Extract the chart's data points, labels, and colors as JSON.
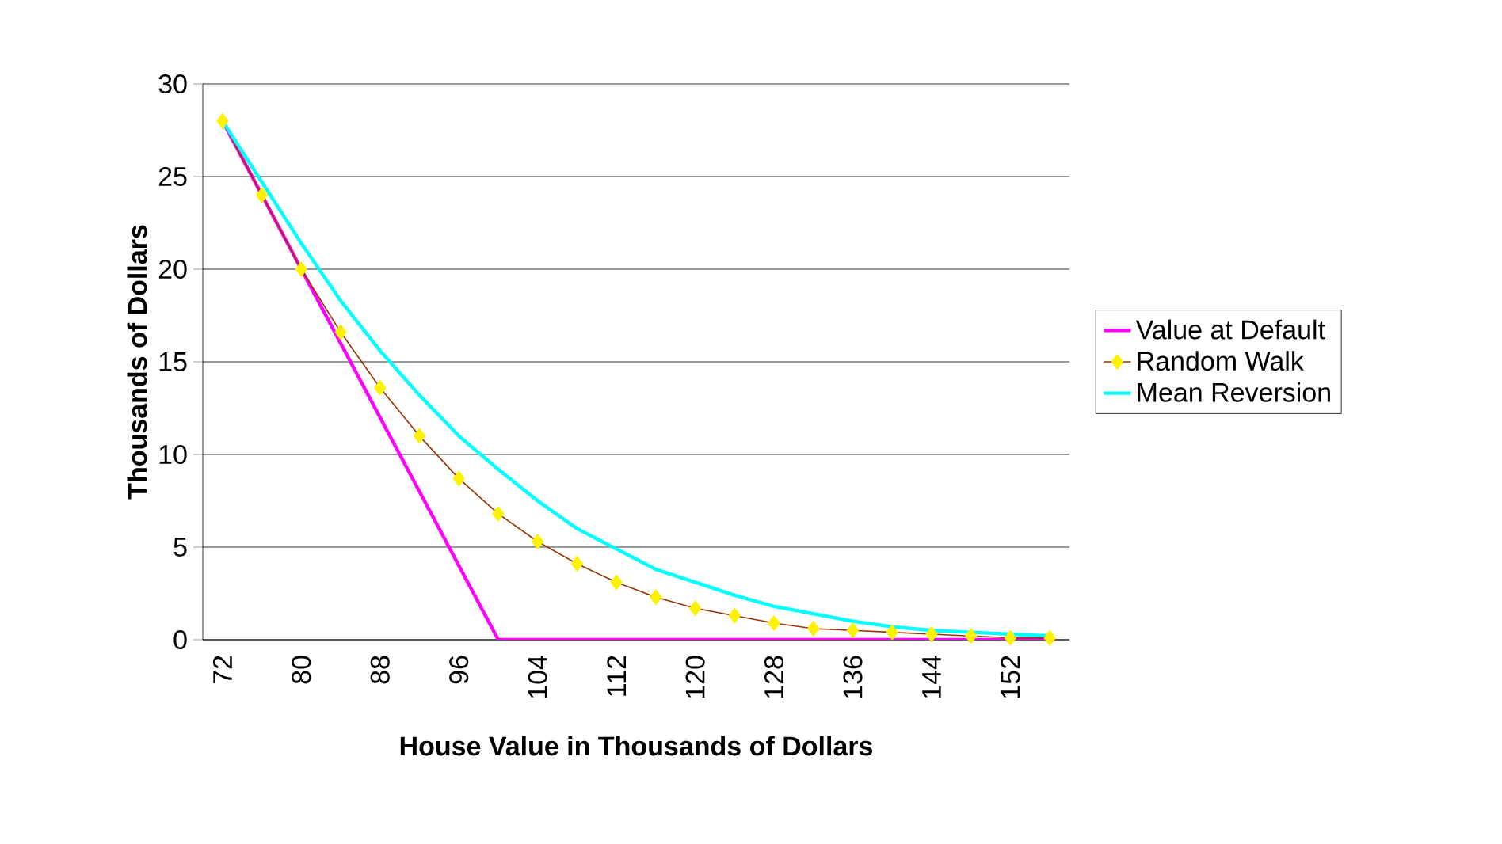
{
  "chart_data": {
    "type": "line",
    "xlabel": "House Value in Thousands of Dollars",
    "ylabel": "Thousands of Dollars",
    "categories": [
      "72",
      null,
      "80",
      null,
      "88",
      null,
      "96",
      null,
      "104",
      null,
      "112",
      null,
      "120",
      null,
      "128",
      null,
      "136",
      null,
      "144",
      null,
      "152",
      null
    ],
    "series": [
      {
        "name": "Value at Default",
        "color": "#ff00ff",
        "marker": "none",
        "values": [
          28,
          24,
          20,
          16,
          12,
          8,
          4,
          0,
          0,
          0,
          0,
          0,
          0,
          0,
          0,
          0,
          0,
          0,
          0,
          0,
          0,
          0
        ]
      },
      {
        "name": "Random Walk",
        "color": "#993300",
        "marker": "diamond",
        "values": [
          28,
          24,
          20,
          16.6,
          13.6,
          11,
          8.7,
          6.8,
          5.3,
          4.1,
          3.1,
          2.3,
          1.7,
          1.3,
          0.9,
          0.6,
          0.5,
          0.4,
          0.3,
          0.2,
          0.1,
          0.1
        ]
      },
      {
        "name": "Mean Reversion",
        "color": "#00ffff",
        "marker": "none",
        "values": [
          28,
          24.7,
          21.4,
          18.3,
          15.6,
          13.2,
          11,
          9.2,
          7.5,
          6,
          4.9,
          3.8,
          3.1,
          2.4,
          1.8,
          1.4,
          1,
          0.7,
          0.5,
          0.4,
          0.3,
          0.2
        ]
      }
    ],
    "ylim": [
      0,
      30
    ],
    "yticks": [
      0,
      5,
      10,
      15,
      20,
      25,
      30
    ],
    "grid": "y",
    "legend": "right"
  }
}
